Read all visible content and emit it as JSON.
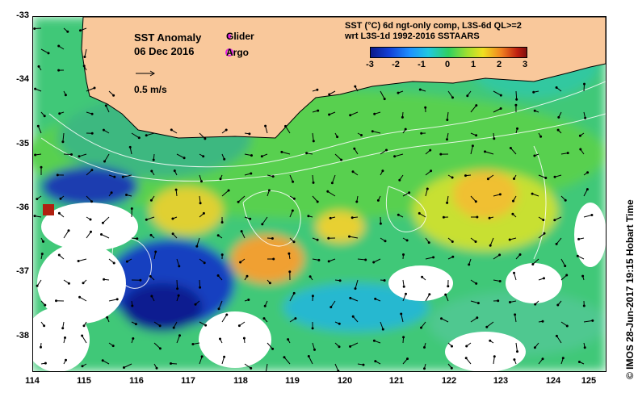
{
  "map": {
    "title_line1": "SST Anomaly",
    "title_line2": "06 Dec 2016",
    "legend": {
      "glider_label": "Glider",
      "argo_label": "Argo",
      "glider_color": "#e020e0",
      "argo_color": "#e020e0"
    },
    "scale_label": "0.5 m/s",
    "colorbar": {
      "title_line1": "SST (°C) 6d ngt-only comp, L3S-6d QL>=2",
      "title_line2": "wrt L3S-1d 1992-2016 SSTAARS",
      "ticks": [
        "-3",
        "-2",
        "-1",
        "0",
        "1",
        "2",
        "3"
      ]
    },
    "lat_labels": [
      "-33",
      "-34",
      "-35",
      "-36",
      "-37",
      "-38"
    ],
    "lon_labels": [
      "114",
      "115",
      "116",
      "117",
      "118",
      "119",
      "120",
      "121",
      "122",
      "123",
      "124",
      "125"
    ],
    "land_color": "#f9c89b",
    "credit": "© IMOS 28-Jun-2017 19:15 Hobart Time"
  }
}
